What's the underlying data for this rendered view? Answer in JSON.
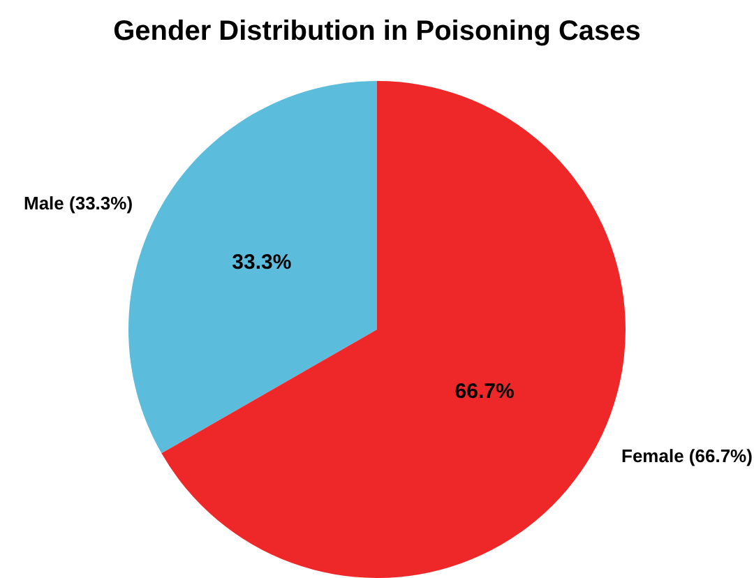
{
  "chart_data": {
    "type": "pie",
    "title": "Gender Distribution in Poisoning Cases",
    "categories": [
      "Male (33.3%)",
      "Female (66.7%)"
    ],
    "values": [
      33.3,
      66.7
    ],
    "value_labels": [
      "33.3%",
      "66.7%"
    ],
    "colors": [
      "#5bbcdc",
      "#ee2829"
    ]
  }
}
